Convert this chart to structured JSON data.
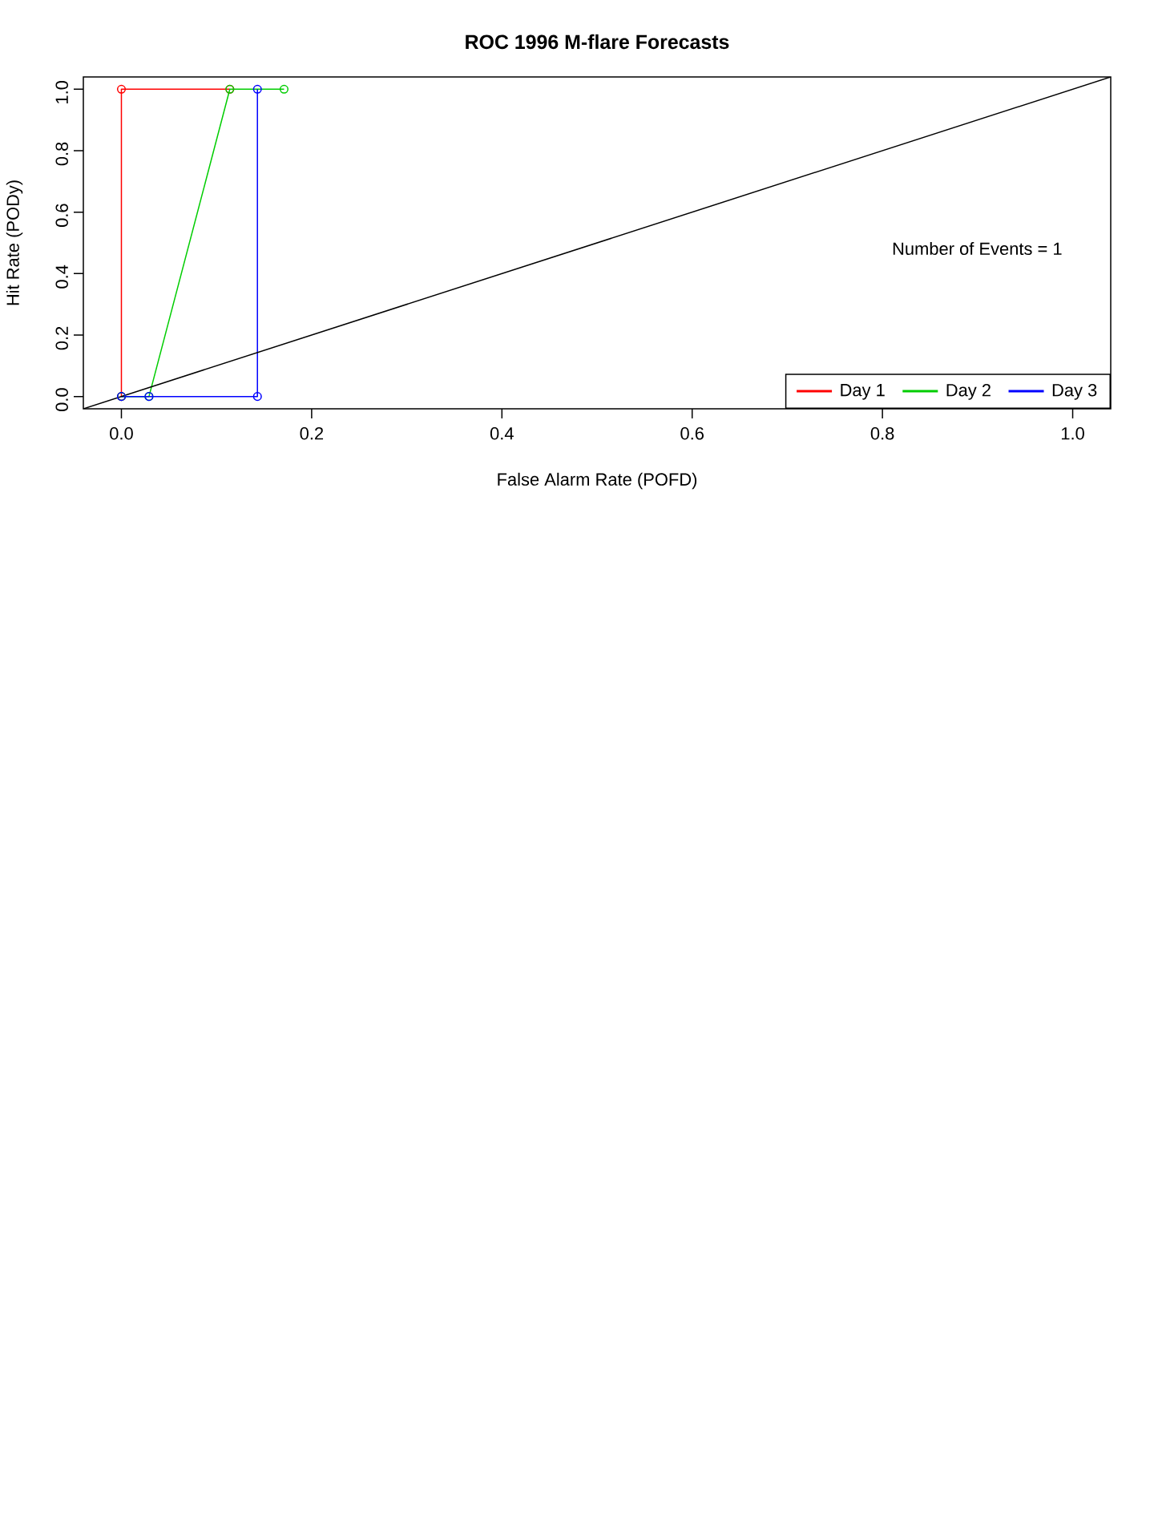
{
  "chart_data": {
    "type": "line",
    "title": "ROC  1996 M-flare Forecasts",
    "xlabel": "False Alarm Rate (POFD)",
    "ylabel": "Hit Rate (PODy)",
    "annotations": [
      "Number of Events =  1"
    ],
    "xlim": [
      -0.04,
      1.04
    ],
    "ylim": [
      -0.04,
      1.04
    ],
    "xticks": [
      {
        "value": 0,
        "label": "0.0"
      },
      0.2,
      0.4,
      0.6,
      0.8,
      {
        "value": 1,
        "label": "1.0"
      }
    ],
    "yticks": [
      {
        "value": 0,
        "label": "0.0"
      },
      0.2,
      0.4,
      0.6,
      0.8,
      {
        "value": 1,
        "label": "1.0"
      }
    ],
    "legend": "bottom right",
    "marker": "circle",
    "series": [
      {
        "name": "Day 1",
        "color": "#ff0000",
        "x": [
          0,
          0,
          0.114
        ],
        "values": [
          0,
          1,
          1
        ]
      },
      {
        "name": "Day 2",
        "color": "#00cd00",
        "x": [
          0,
          0.029,
          0.114,
          0.171
        ],
        "values": [
          0,
          0,
          1,
          1
        ]
      },
      {
        "name": "Day 3",
        "color": "#0000ff",
        "x": [
          0,
          0.029,
          0.143,
          0.143
        ],
        "values": [
          0,
          0,
          0,
          1
        ]
      },
      {
        "color": "#000000",
        "x": [
          -0.04,
          1.04
        ],
        "values": [
          -0.04,
          1.04
        ],
        "marker": "none"
      }
    ]
  }
}
